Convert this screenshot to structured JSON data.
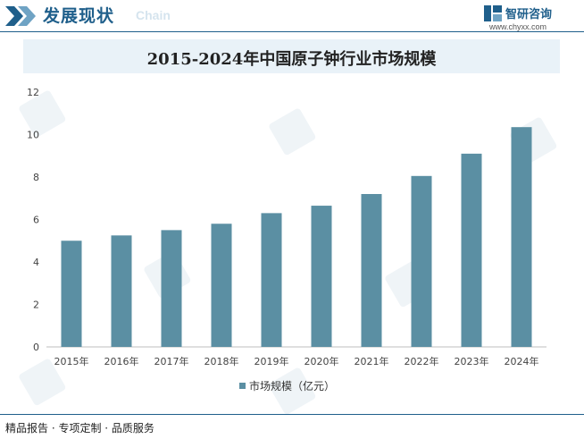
{
  "header": {
    "title": "发展现状",
    "subtitle": "Chain"
  },
  "brand": {
    "name": "智研咨询",
    "url": "www.chyxx.com"
  },
  "colors": {
    "brand": "#1f5f8b",
    "bar": "#5b8fa3",
    "title_band": "#e9f2f8"
  },
  "chart_data": {
    "type": "bar",
    "title": "2015-2024年中国原子钟行业市场规模",
    "categories": [
      "2015年",
      "2016年",
      "2017年",
      "2018年",
      "2019年",
      "2020年",
      "2021年",
      "2022年",
      "2023年",
      "2024年"
    ],
    "series": [
      {
        "name": "市场规模（亿元）",
        "values": [
          5.0,
          5.25,
          5.5,
          5.8,
          6.3,
          6.65,
          7.2,
          8.05,
          9.1,
          10.35
        ]
      }
    ],
    "yticks": [
      "0",
      "2",
      "4",
      "6",
      "8",
      "10",
      "12"
    ],
    "ylim": [
      0,
      12
    ],
    "xlabel": "",
    "ylabel": "",
    "legend_position": "bottom",
    "grid": false
  },
  "footer": {
    "text": "精品报告 · 专项定制 · 品质服务"
  }
}
